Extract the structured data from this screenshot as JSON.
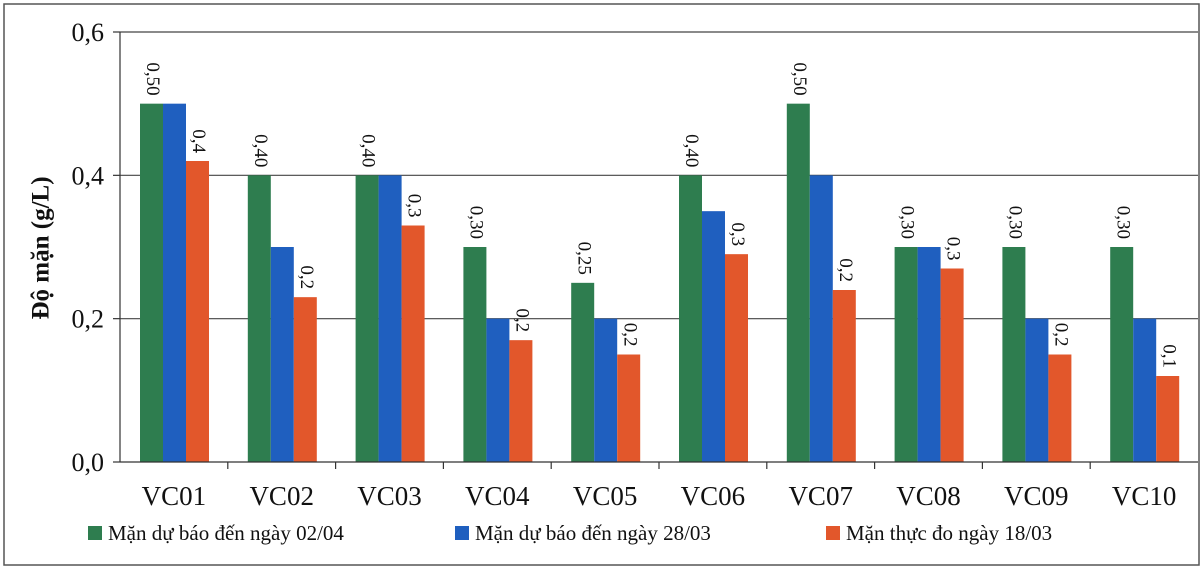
{
  "chart_data": {
    "type": "bar",
    "title": "",
    "xlabel": "",
    "ylabel": "Độ mặn (g/L)",
    "ylim": [
      0,
      0.6
    ],
    "yticks": [
      0.0,
      0.2,
      0.4,
      0.6
    ],
    "ytick_labels": [
      "0,0",
      "0,2",
      "0,4",
      "0,6"
    ],
    "grid": true,
    "legend_position": "bottom",
    "categories": [
      "VC01",
      "VC02",
      "VC03",
      "VC04",
      "VC05",
      "VC06",
      "VC07",
      "VC08",
      "VC09",
      "VC10"
    ],
    "series": [
      {
        "name": "Mặn dự báo đến ngày 02/04",
        "color": "#2e7d4f",
        "values": [
          0.5,
          0.4,
          0.4,
          0.3,
          0.25,
          0.4,
          0.5,
          0.3,
          0.3,
          0.3
        ],
        "labels": [
          "0,50",
          "0,40",
          "0,40",
          "0,30",
          "0,25",
          "0,40",
          "0,50",
          "0,30",
          "0,30",
          "0,30"
        ]
      },
      {
        "name": "Mặn dự báo đến ngày 28/03",
        "color": "#1f5fbf",
        "values": [
          0.5,
          0.3,
          0.4,
          0.2,
          0.2,
          0.35,
          0.4,
          0.3,
          0.2,
          0.2
        ],
        "labels": [
          "",
          "",
          "",
          "",
          "",
          "",
          "",
          "",
          "",
          ""
        ]
      },
      {
        "name": "Mặn thực đo ngày 18/03",
        "color": "#e2572b",
        "values": [
          0.42,
          0.23,
          0.33,
          0.17,
          0.15,
          0.29,
          0.24,
          0.27,
          0.15,
          0.12
        ],
        "labels": [
          "0,4",
          "0,2",
          "0,3",
          "0,2",
          "0,2",
          "0,3",
          "0,2",
          "0,3",
          "0,2",
          "0,1"
        ]
      }
    ]
  }
}
